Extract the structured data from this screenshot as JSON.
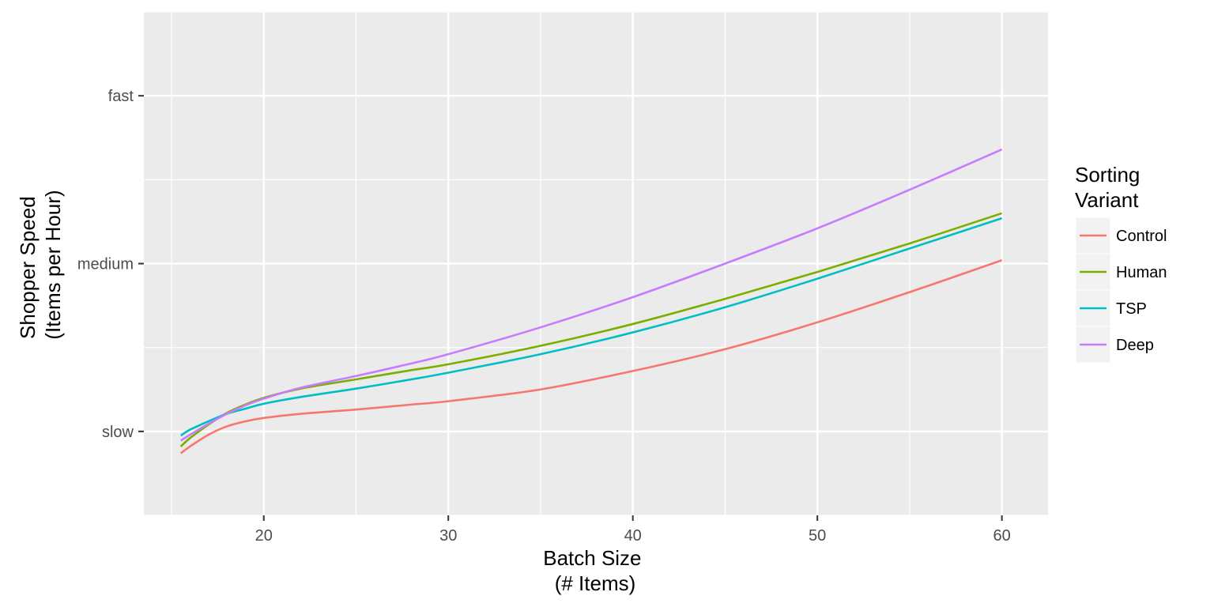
{
  "chart_data": {
    "type": "line",
    "xlabel": [
      "Batch Size",
      "(# Items)"
    ],
    "ylabel": [
      "Shopper Speed",
      "(Items per Hour)"
    ],
    "xlim": [
      13.5,
      62.5
    ],
    "ylim": [
      0,
      30
    ],
    "xticks": [
      20,
      30,
      40,
      50,
      60
    ],
    "yticks": [
      {
        "label": "slow",
        "value": 5
      },
      {
        "label": "medium",
        "value": 15
      },
      {
        "label": "fast",
        "value": 25
      }
    ],
    "grid": true,
    "legend": {
      "title": [
        "Sorting",
        "Variant"
      ],
      "placement": "right"
    },
    "x": [
      15.5,
      16,
      17,
      18,
      19,
      20,
      22,
      25,
      28,
      30,
      35,
      40,
      45,
      50,
      55,
      60
    ],
    "series": [
      {
        "name": "Control",
        "color": "#F8766D",
        "values": [
          3.7,
          4.1,
          4.8,
          5.3,
          5.6,
          5.8,
          6.05,
          6.3,
          6.6,
          6.8,
          7.5,
          8.6,
          9.9,
          11.5,
          13.3,
          15.2
        ]
      },
      {
        "name": "Human",
        "color": "#7CAE00",
        "values": [
          4.1,
          4.6,
          5.4,
          6.1,
          6.6,
          7.0,
          7.55,
          8.1,
          8.65,
          9.0,
          10.1,
          11.4,
          12.9,
          14.5,
          16.2,
          18.0
        ]
      },
      {
        "name": "TSP",
        "color": "#00BFC4",
        "values": [
          4.75,
          5.1,
          5.6,
          6.05,
          6.35,
          6.65,
          7.05,
          7.55,
          8.1,
          8.5,
          9.6,
          10.9,
          12.4,
          14.1,
          15.9,
          17.7
        ]
      },
      {
        "name": "Deep",
        "color": "#C77CFF",
        "values": [
          4.45,
          4.8,
          5.45,
          6.05,
          6.55,
          6.95,
          7.6,
          8.3,
          9.05,
          9.6,
          11.2,
          13.0,
          15.0,
          17.1,
          19.4,
          21.8
        ]
      }
    ]
  }
}
